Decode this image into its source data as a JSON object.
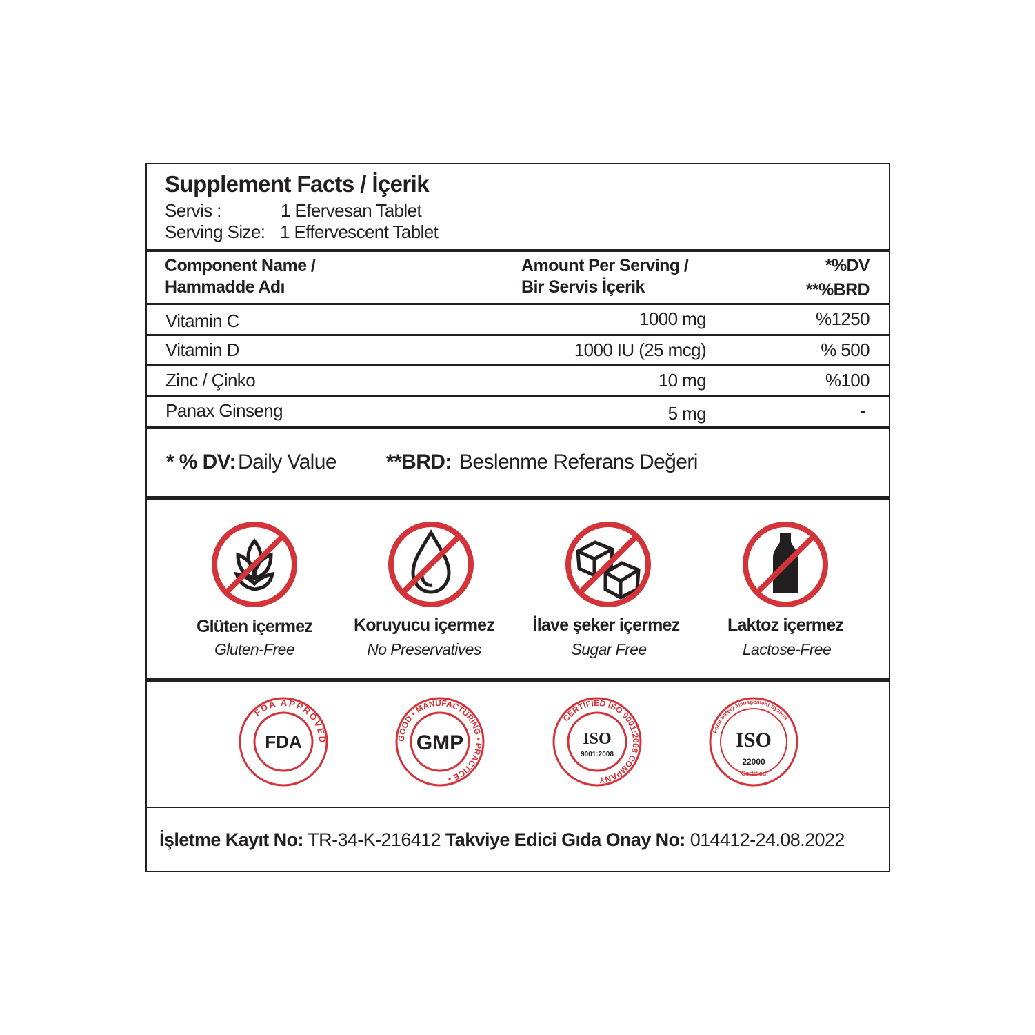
{
  "header": {
    "title": "Supplement Facts / İçerik",
    "servis_label": "Servis :",
    "servis_value": "1 Efervesan Tablet",
    "serving_label": "Serving Size:",
    "serving_value": "1 Effervescent Tablet"
  },
  "table": {
    "columns": {
      "name_en": "Component Name /",
      "name_tr": "Hammadde Adı",
      "amount_en": "Amount Per Serving /",
      "amount_tr": "Bir Servis İçerik",
      "dv": "*%DV",
      "brd": "**%BRD"
    },
    "rows": [
      {
        "name": "Vitamin C",
        "amount": "1000 mg",
        "dv": "%1250"
      },
      {
        "name": "Vitamin D",
        "amount": "1000 IU (25 mcg)",
        "dv": "% 500"
      },
      {
        "name": "Zinc / Çinko",
        "amount": "10 mg",
        "dv": "%100"
      },
      {
        "name": "Panax Ginseng",
        "amount": "5 mg",
        "dv": "-"
      }
    ]
  },
  "legend": {
    "dv_key": "* % DV:",
    "dv_value": "Daily Value",
    "brd_key": "**BRD:",
    "brd_value": "Beslenme Referans Değeri"
  },
  "free_from": [
    {
      "icon": "no-gluten-icon",
      "tr": "Glüten içermez",
      "en": "Gluten-Free"
    },
    {
      "icon": "no-preservatives-icon",
      "tr": "Koruyucu içermez",
      "en": "No Preservatives"
    },
    {
      "icon": "no-sugar-icon",
      "tr": "İlave şeker içermez",
      "en": "Sugar Free"
    },
    {
      "icon": "no-lactose-icon",
      "tr": "Laktoz içermez",
      "en": "Lactose-Free"
    }
  ],
  "certifications": [
    {
      "icon": "fda-approved-badge",
      "text": "FDA APPROVED"
    },
    {
      "icon": "gmp-badge",
      "text": "GOOD MANUFACTURING PRACTICE GMP"
    },
    {
      "icon": "iso-9001-badge",
      "text": "CERTIFIED ISO 9001:2008 COMPANY"
    },
    {
      "icon": "iso-22000-badge",
      "text": "Food Safety Management System ISO 22000 Certified"
    }
  ],
  "footer": {
    "reg_label": "İşletme Kayıt No:",
    "reg_value": "TR-34-K-216412",
    "approval_label": "Takviye Edici Gıda Onay No:",
    "approval_value": "014412-24.08.2022"
  },
  "colors": {
    "accent": "#d2343a",
    "text": "#231f20"
  }
}
